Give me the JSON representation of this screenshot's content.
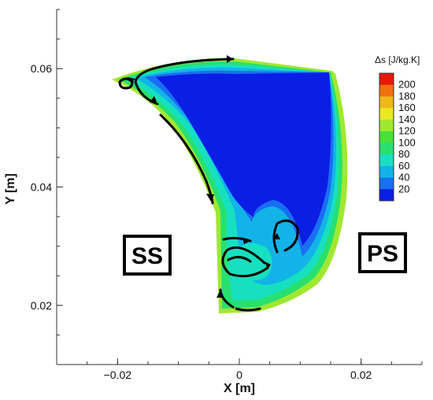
{
  "chart_data": {
    "type": "contour",
    "xlabel": "X [m]",
    "ylabel": "Y [m]",
    "xlim": [
      -0.03,
      0.03
    ],
    "ylim": [
      0.01,
      0.07
    ],
    "x_ticks": [
      -0.02,
      0,
      0.02
    ],
    "x_tick_labels": [
      "−0.02",
      "0",
      "0.02"
    ],
    "y_ticks": [
      0.02,
      0.04,
      0.06
    ],
    "y_tick_labels": [
      "0.02",
      "0.04",
      "0.06"
    ],
    "grid": false,
    "colorbar": {
      "title": "Δs [J/kg.K]",
      "placement": "top-right",
      "levels": [
        20,
        40,
        60,
        80,
        100,
        120,
        140,
        160,
        180,
        200
      ],
      "level_labels": [
        "20",
        "40",
        "60",
        "80",
        "100",
        "120",
        "140",
        "160",
        "180",
        "200"
      ],
      "colors": [
        "#0a1ee6",
        "#1a6ef2",
        "#12b4e8",
        "#17e0c0",
        "#28e070",
        "#48e03a",
        "#a0e830",
        "#e8e820",
        "#f0b818",
        "#f07010",
        "#e81808"
      ]
    },
    "annotations": [
      "SS",
      "PS"
    ]
  },
  "colors": {
    "core": "#0a1ee6",
    "band_blue": "#1a6ef2",
    "band_cyan": "#12b4e8",
    "band_teal": "#17e0c0",
    "band_green": "#28e070",
    "band_lime": "#a0e830",
    "streamline": "#000000"
  }
}
